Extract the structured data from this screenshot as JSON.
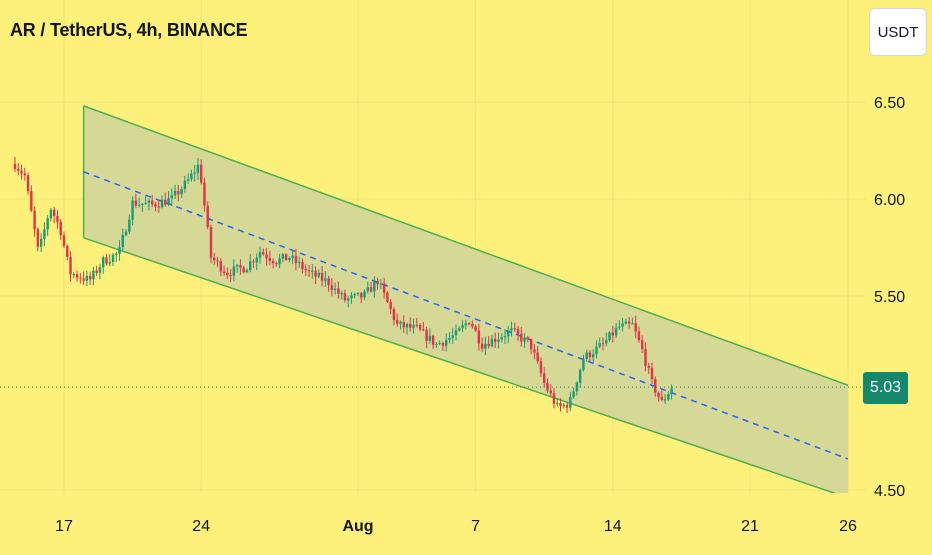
{
  "chart_title": "AR / TetherUS, 4h, BINANCE",
  "currency_button": "USDT",
  "last_price_label": "5.03",
  "colors": {
    "background": "#fdf17c",
    "candle_up": "#1a9a76",
    "candle_down": "#e0334a",
    "channel_border": "#4caf50",
    "channel_fill": "#cfd39a",
    "midline": "#2962ff",
    "last_price_line": "#14876d",
    "last_price_tag": "#14876d"
  },
  "chart_data": {
    "type": "candlestick",
    "symbol": "AR / TetherUS",
    "timeframe": "4h",
    "exchange": "BINANCE",
    "x_ticks": [
      "17",
      "24",
      "Aug",
      "7",
      "14",
      "21",
      "26"
    ],
    "y_ticks": [
      "6.50",
      "6.00",
      "5.50",
      "4.50"
    ],
    "ylim": [
      4.49,
      6.54
    ],
    "last_price": 5.03,
    "channel": {
      "upper": [
        {
          "x": "Jul 18",
          "y": 6.48
        },
        {
          "x": "Aug 26",
          "y": 5.04
        }
      ],
      "middle": [
        {
          "x": "Jul 18",
          "y": 6.14
        },
        {
          "x": "Aug 26",
          "y": 4.66
        }
      ],
      "lower": [
        {
          "x": "Jul 18",
          "y": 5.8
        },
        {
          "x": "Aug 26",
          "y": 4.46
        }
      ]
    },
    "price_path": [
      [
        "Jul 14.5",
        6.18
      ],
      [
        "Jul 15.0",
        6.12
      ],
      [
        "Jul 15.7",
        5.72
      ],
      [
        "Jul 16.3",
        5.96
      ],
      [
        "Jul 16.8",
        5.85
      ],
      [
        "Jul 17.3",
        5.62
      ],
      [
        "Jul 18.3",
        5.58
      ],
      [
        "Jul 19.0",
        5.68
      ],
      [
        "Jul 19.8",
        5.72
      ],
      [
        "Jul 20.5",
        5.98
      ],
      [
        "Jul 21.5",
        5.97
      ],
      [
        "Jul 22.5",
        6.0
      ],
      [
        "Jul 23.3",
        6.09
      ],
      [
        "Jul 23.9",
        6.18
      ],
      [
        "Jul 24.5",
        5.7
      ],
      [
        "Jul 25.3",
        5.62
      ],
      [
        "Jul 26.3",
        5.65
      ],
      [
        "Jul 27.0",
        5.73
      ],
      [
        "Jul 27.8",
        5.68
      ],
      [
        "Jul 28.5",
        5.7
      ],
      [
        "Jul 29.5",
        5.62
      ],
      [
        "Jul 30.5",
        5.57
      ],
      [
        "Jul 31.3",
        5.48
      ],
      [
        "Aug 1.3",
        5.5
      ],
      [
        "Aug 2.0",
        5.58
      ],
      [
        "Aug 3.0",
        5.35
      ],
      [
        "Aug 4.0",
        5.33
      ],
      [
        "Aug 5.0",
        5.25
      ],
      [
        "Aug 6.0",
        5.3
      ],
      [
        "Aug 6.7",
        5.38
      ],
      [
        "Aug 7.3",
        5.25
      ],
      [
        "Aug 8.0",
        5.28
      ],
      [
        "Aug 8.8",
        5.32
      ],
      [
        "Aug 9.8",
        5.25
      ],
      [
        "Aug 10.5",
        5.05
      ],
      [
        "Aug 11.2",
        4.92
      ],
      [
        "Aug 11.8",
        4.95
      ],
      [
        "Aug 12.5",
        5.18
      ],
      [
        "Aug 13.5",
        5.25
      ],
      [
        "Aug 14.3",
        5.34
      ],
      [
        "Aug 15.0",
        5.35
      ],
      [
        "Aug 15.5",
        5.22
      ],
      [
        "Aug 16.0",
        5.05
      ],
      [
        "Aug 16.5",
        4.95
      ],
      [
        "Aug 17.0",
        5.03
      ]
    ]
  }
}
